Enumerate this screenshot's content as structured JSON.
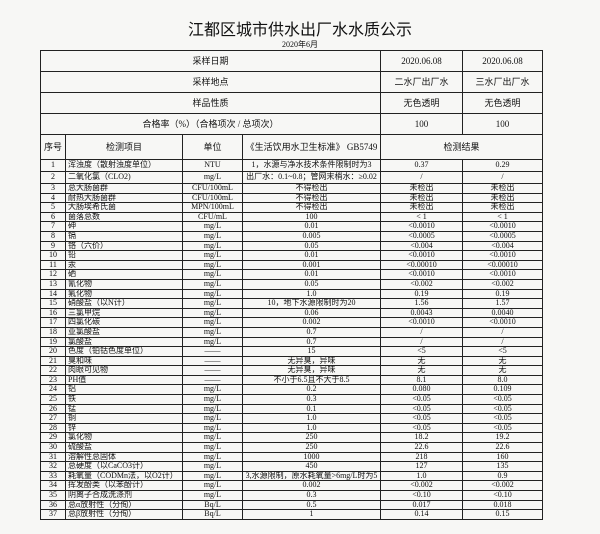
{
  "title": "江都区城市供水出厂水水质公示",
  "subtitle": "2020年6月",
  "header": {
    "sample_date": {
      "label": "采样日期",
      "v1": "2020.06.08",
      "v2": "2020.06.08"
    },
    "sample_site": {
      "label": "采样地点",
      "v1": "二水厂出厂水",
      "v2": "三水厂出厂水"
    },
    "sample_nature": {
      "label": "样品性质",
      "v1": "无色透明",
      "v2": "无色透明"
    },
    "pass_rate": {
      "label": "合格率（%）（合格项次 / 总项次）",
      "v1": "100",
      "v2": "100"
    }
  },
  "columns": {
    "seq": "序号",
    "item": "检测项目",
    "unit": "单位",
    "standard": "《生活饮用水卫生标准》 GB5749",
    "result": "检测结果"
  },
  "rows": [
    [
      "1",
      "浑浊度（散射浊度单位）",
      "NTU",
      "1，水源与净水技术条件限制时为3",
      "0.37",
      "0.29"
    ],
    [
      "2",
      "二氧化氯（CLO2)",
      "mg/L",
      "出厂水：0.1~0.8；管网末梢水：≥0.02",
      "/",
      "/"
    ],
    [
      "3",
      "总大肠菌群",
      "CFU/100mL",
      "不得检出",
      "未检出",
      "未检出"
    ],
    [
      "4",
      "耐热大肠菌群",
      "CFU/100mL",
      "不得检出",
      "未检出",
      "未检出"
    ],
    [
      "5",
      "大肠埃希氏菌",
      "MPN/100mL",
      "不得检出",
      "未检出",
      "未检出"
    ],
    [
      "6",
      "菌落总数",
      "CFU/mL",
      "100",
      "< 1",
      "< 1"
    ],
    [
      "7",
      "砷",
      "mg/L",
      "0.01",
      "<0.0010",
      "<0.0010"
    ],
    [
      "8",
      "镉",
      "mg/L",
      "0.005",
      "<0.0005",
      "<0.0005"
    ],
    [
      "9",
      "铬（六价）",
      "mg/L",
      "0.05",
      "<0.004",
      "<0.004"
    ],
    [
      "10",
      "铅",
      "mg/L",
      "0.01",
      "<0.0010",
      "<0.0010"
    ],
    [
      "11",
      "汞",
      "mg/L",
      "0.001",
      "<0.00010",
      "<0.00010"
    ],
    [
      "12",
      "硒",
      "mg/L",
      "0.01",
      "<0.0010",
      "<0.0010"
    ],
    [
      "13",
      "氰化物",
      "mg/L",
      "0.05",
      "<0.002",
      "<0.002"
    ],
    [
      "14",
      "氟化物",
      "mg/L",
      "1.0",
      "0.19",
      "0.19"
    ],
    [
      "15",
      "硝酸盐（以N计）",
      "mg/L",
      "10，地下水源限制时为20",
      "1.56",
      "1.57"
    ],
    [
      "16",
      "三氯甲烷",
      "mg/L",
      "0.06",
      "0.0043",
      "0.0040"
    ],
    [
      "17",
      "四氯化碳",
      "mg/L",
      "0.002",
      "<0.0010",
      "<0.0010"
    ],
    [
      "18",
      "亚氯酸盐",
      "mg/L",
      "0.7",
      "/",
      "/"
    ],
    [
      "19",
      "氯酸盐",
      "mg/L",
      "0.7",
      "/",
      "/"
    ],
    [
      "20",
      "色度（铂钴色度单位）",
      "——",
      "15",
      "<5",
      "<5"
    ],
    [
      "21",
      "臭和味",
      "——",
      "无异臭，异味",
      "无",
      "无"
    ],
    [
      "22",
      "肉眼可见物",
      "——",
      "无异臭，异味",
      "无",
      "无"
    ],
    [
      "23",
      "PH值",
      "——",
      "不小于6.5且不大于8.5",
      "8.1",
      "8.0"
    ],
    [
      "24",
      "铝",
      "mg/L",
      "0.2",
      "0.080",
      "0.109"
    ],
    [
      "25",
      "铁",
      "mg/L",
      "0.3",
      "<0.05",
      "<0.05"
    ],
    [
      "26",
      "锰",
      "mg/L",
      "0.1",
      "<0.05",
      "<0.05"
    ],
    [
      "27",
      "铜",
      "mg/L",
      "1.0",
      "<0.05",
      "<0.05"
    ],
    [
      "28",
      "锌",
      "mg/L",
      "1.0",
      "<0.05",
      "<0.05"
    ],
    [
      "29",
      "氯化物",
      "mg/L",
      "250",
      "18.2",
      "19.2"
    ],
    [
      "30",
      "硫酸盐",
      "mg/L",
      "250",
      "22.6",
      "22.6"
    ],
    [
      "31",
      "溶解性总固体",
      "mg/L",
      "1000",
      "218",
      "160"
    ],
    [
      "32",
      "总硬度（以CaCO3计）",
      "mg/L",
      "450",
      "127",
      "135"
    ],
    [
      "33",
      "耗氧量（CODMn法，以O2计）",
      "mg/L",
      "3,水源限制，原水耗氧量>6mg/L时为5",
      "1.0",
      "0.9"
    ],
    [
      "34",
      "挥发酚类（以苯酚计）",
      "mg/L",
      "0.002",
      "<0.002",
      "<0.002"
    ],
    [
      "35",
      "阴离子合成洗涤剂",
      "mg/L",
      "0.3",
      "<0.10",
      "<0.10"
    ],
    [
      "36",
      "总α放射性（分侚）",
      "Bq/L",
      "0.5",
      "0.017",
      "0.018"
    ],
    [
      "37",
      "总β放射性（分侚）",
      "Bq/L",
      "1",
      "0.14",
      "0.15"
    ]
  ]
}
